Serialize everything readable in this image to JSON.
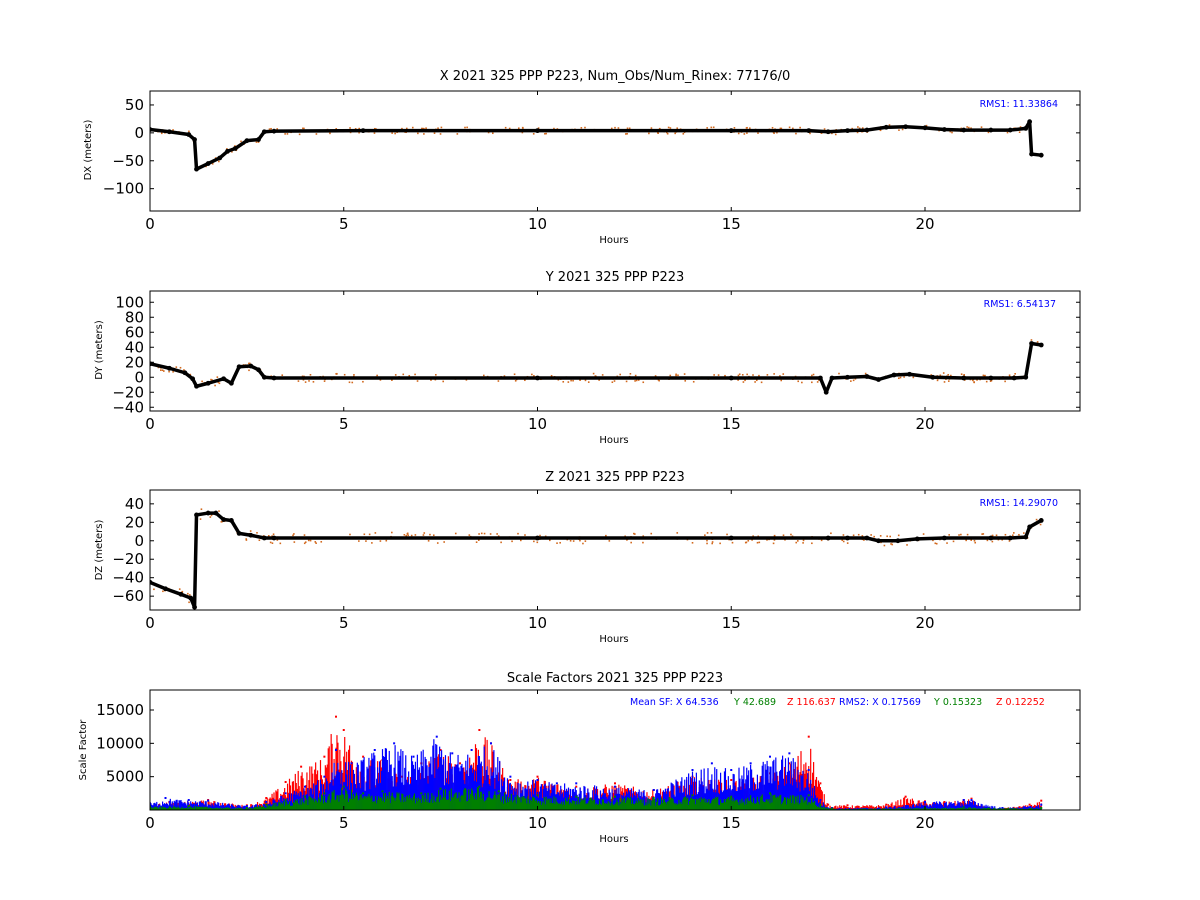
{
  "chart_data": [
    {
      "type": "scatter",
      "title": "X 2021 325 PPP  P223, Num_Obs/Num_Rinex: 77176/0",
      "xlabel": "Hours",
      "ylabel": "DX (meters)",
      "xlim": [
        0,
        24
      ],
      "ylim": [
        -140,
        75
      ],
      "xticks": [
        0,
        5,
        10,
        15,
        20
      ],
      "yticks": [
        50,
        0,
        -50,
        -100
      ],
      "annotation": "RMS1: 11.33864",
      "annotation_color": "#0000ff",
      "series": [
        {
          "color": "#000000",
          "values": [
            [
              0,
              6
            ],
            [
              0.5,
              2
            ],
            [
              1.0,
              -3
            ],
            [
              1.15,
              -12
            ],
            [
              1.2,
              -65
            ],
            [
              1.5,
              -55
            ],
            [
              1.8,
              -45
            ],
            [
              2.0,
              -33
            ],
            [
              2.2,
              -28
            ],
            [
              2.5,
              -14
            ],
            [
              2.8,
              -12
            ],
            [
              2.95,
              2
            ],
            [
              3.2,
              3
            ],
            [
              5.5,
              4
            ],
            [
              10,
              4
            ],
            [
              15,
              4
            ],
            [
              17.0,
              4
            ],
            [
              17.5,
              2
            ],
            [
              18.0,
              4
            ],
            [
              18.5,
              5
            ],
            [
              19.0,
              10
            ],
            [
              19.5,
              11
            ],
            [
              20.0,
              9
            ],
            [
              20.5,
              6
            ],
            [
              21.0,
              5
            ],
            [
              21.7,
              5
            ],
            [
              22.2,
              5
            ],
            [
              22.6,
              8
            ],
            [
              22.7,
              20
            ],
            [
              22.75,
              -38
            ],
            [
              23.0,
              -40
            ]
          ]
        }
      ],
      "outliers_color": "#d2691e"
    },
    {
      "type": "scatter",
      "title": "Y 2021 325 PPP  P223",
      "xlabel": "Hours",
      "ylabel": "DY (meters)",
      "xlim": [
        0,
        24
      ],
      "ylim": [
        -45,
        115
      ],
      "xticks": [
        0,
        5,
        10,
        15,
        20
      ],
      "yticks": [
        100,
        80,
        60,
        40,
        20,
        0,
        -20,
        -40
      ],
      "annotation": "RMS1:  6.54137",
      "annotation_color": "#0000ff",
      "series": [
        {
          "color": "#000000",
          "values": [
            [
              0,
              18
            ],
            [
              0.5,
              12
            ],
            [
              0.9,
              6
            ],
            [
              1.1,
              -2
            ],
            [
              1.2,
              -12
            ],
            [
              1.5,
              -8
            ],
            [
              1.9,
              -2
            ],
            [
              2.1,
              -8
            ],
            [
              2.3,
              14
            ],
            [
              2.6,
              15
            ],
            [
              2.8,
              10
            ],
            [
              2.95,
              0
            ],
            [
              3.2,
              -1
            ],
            [
              10,
              -1
            ],
            [
              15,
              -1
            ],
            [
              17.3,
              -1
            ],
            [
              17.45,
              -20
            ],
            [
              17.6,
              -1
            ],
            [
              18.0,
              0
            ],
            [
              18.5,
              1
            ],
            [
              18.8,
              -3
            ],
            [
              19.2,
              3
            ],
            [
              19.6,
              4
            ],
            [
              20.2,
              0
            ],
            [
              21.0,
              -1
            ],
            [
              21.7,
              -1
            ],
            [
              22.3,
              -1
            ],
            [
              22.6,
              0
            ],
            [
              22.75,
              45
            ],
            [
              23.0,
              43
            ]
          ]
        }
      ],
      "outliers_color": "#d2691e"
    },
    {
      "type": "scatter",
      "title": "Z 2021 325 PPP  P223",
      "xlabel": "Hours",
      "ylabel": "DZ (meters)",
      "xlim": [
        0,
        24
      ],
      "ylim": [
        -75,
        55
      ],
      "xticks": [
        0,
        5,
        10,
        15,
        20
      ],
      "yticks": [
        40,
        20,
        0,
        -20,
        -40,
        -60
      ],
      "annotation": "RMS1: 14.29070",
      "annotation_color": "#0000ff",
      "series": [
        {
          "color": "#000000",
          "values": [
            [
              0,
              -45
            ],
            [
              0.4,
              -52
            ],
            [
              0.8,
              -58
            ],
            [
              1.05,
              -62
            ],
            [
              1.15,
              -72
            ],
            [
              1.2,
              28
            ],
            [
              1.5,
              30
            ],
            [
              1.7,
              30
            ],
            [
              1.9,
              23
            ],
            [
              2.1,
              22
            ],
            [
              2.3,
              8
            ],
            [
              2.6,
              6
            ],
            [
              2.95,
              3
            ],
            [
              3.2,
              3
            ],
            [
              10,
              3
            ],
            [
              15,
              3
            ],
            [
              17.5,
              3
            ],
            [
              18.0,
              3
            ],
            [
              18.5,
              3
            ],
            [
              18.8,
              0
            ],
            [
              19.3,
              0
            ],
            [
              19.8,
              2
            ],
            [
              20.5,
              3
            ],
            [
              21.7,
              3
            ],
            [
              22.2,
              3
            ],
            [
              22.6,
              4
            ],
            [
              22.7,
              15
            ],
            [
              23.0,
              22
            ]
          ]
        }
      ],
      "outliers_color": "#d2691e"
    },
    {
      "type": "scatter",
      "title": "Scale Factors 2021 325 PPP  P223",
      "xlabel": "Hours",
      "ylabel": "Scale Factor",
      "xlim": [
        0,
        24
      ],
      "ylim": [
        0,
        18000
      ],
      "xticks": [
        0,
        5,
        10,
        15,
        20
      ],
      "yticks": [
        15000,
        10000,
        5000
      ],
      "annotations": [
        {
          "text": "Mean SF: X  64.536",
          "color": "#0000ff"
        },
        {
          "text": "Y  42.689",
          "color": "#008000"
        },
        {
          "text": "Z 116.637",
          "color": "#ff0000"
        },
        {
          "text": "RMS2: X  0.17569",
          "color": "#0000ff"
        },
        {
          "text": "Y  0.15323",
          "color": "#008000"
        },
        {
          "text": "Z  0.12252",
          "color": "#ff0000"
        }
      ],
      "series": [
        {
          "name": "Z",
          "color": "#ff0000",
          "values": [
            [
              0,
              800
            ],
            [
              0.5,
              1200
            ],
            [
              1.5,
              1500
            ],
            [
              2.5,
              700
            ],
            [
              3.0,
              1800
            ],
            [
              3.5,
              4200
            ],
            [
              3.9,
              6500
            ],
            [
              4.5,
              8000
            ],
            [
              4.8,
              14000
            ],
            [
              5.0,
              12000
            ],
            [
              5.5,
              8000
            ],
            [
              6.0,
              7500
            ],
            [
              6.5,
              5000
            ],
            [
              7.0,
              7000
            ],
            [
              7.5,
              9000
            ],
            [
              8.0,
              7000
            ],
            [
              8.5,
              12000
            ],
            [
              8.8,
              10000
            ],
            [
              9.3,
              4500
            ],
            [
              10,
              5000
            ],
            [
              11,
              3500
            ],
            [
              12,
              4000
            ],
            [
              13,
              3000
            ],
            [
              14,
              5000
            ],
            [
              15,
              4500
            ],
            [
              16,
              5500
            ],
            [
              16.5,
              7000
            ],
            [
              17.0,
              11000
            ],
            [
              17.3,
              4000
            ],
            [
              17.5,
              800
            ],
            [
              18.0,
              700
            ],
            [
              19.0,
              800
            ],
            [
              19.5,
              2000
            ],
            [
              20.0,
              1300
            ],
            [
              20.5,
              1200
            ],
            [
              21.0,
              1500
            ],
            [
              21.2,
              1700
            ],
            [
              21.5,
              400
            ],
            [
              22.0,
              300
            ],
            [
              22.7,
              800
            ],
            [
              23.0,
              1400
            ]
          ]
        },
        {
          "name": "X",
          "color": "#0000ff",
          "values": [
            [
              0,
              1000
            ],
            [
              0.4,
              1800
            ],
            [
              1.0,
              1500
            ],
            [
              1.5,
              1400
            ],
            [
              2.5,
              600
            ],
            [
              3.0,
              1200
            ],
            [
              3.5,
              2500
            ],
            [
              4.0,
              3500
            ],
            [
              4.5,
              5000
            ],
            [
              4.8,
              9000
            ],
            [
              5.2,
              7000
            ],
            [
              5.8,
              9000
            ],
            [
              6.3,
              10000
            ],
            [
              6.8,
              8000
            ],
            [
              7.4,
              11000
            ],
            [
              7.8,
              8500
            ],
            [
              8.3,
              9000
            ],
            [
              8.8,
              10000
            ],
            [
              9.3,
              5000
            ],
            [
              10,
              4500
            ],
            [
              10.5,
              4000
            ],
            [
              11,
              4000
            ],
            [
              12,
              3500
            ],
            [
              13,
              3000
            ],
            [
              14,
              6000
            ],
            [
              14.5,
              7000
            ],
            [
              15.0,
              6000
            ],
            [
              15.5,
              7000
            ],
            [
              16.0,
              8000
            ],
            [
              16.5,
              8500
            ],
            [
              17.0,
              6000
            ],
            [
              17.3,
              1500
            ],
            [
              17.6,
              300
            ],
            [
              19.0,
              400
            ],
            [
              20.0,
              1200
            ],
            [
              21.0,
              1500
            ],
            [
              21.2,
              1500
            ],
            [
              22.0,
              300
            ],
            [
              23.0,
              800
            ]
          ]
        },
        {
          "name": "Y",
          "color": "#008000",
          "values": [
            [
              0,
              500
            ],
            [
              1.0,
              600
            ],
            [
              2.5,
              300
            ],
            [
              3.0,
              800
            ],
            [
              3.5,
              1500
            ],
            [
              4.0,
              2000
            ],
            [
              4.5,
              2500
            ],
            [
              5.0,
              3500
            ],
            [
              5.5,
              2500
            ],
            [
              6.0,
              2800
            ],
            [
              7.0,
              2500
            ],
            [
              7.5,
              3200
            ],
            [
              8.5,
              3500
            ],
            [
              9.0,
              2800
            ],
            [
              10,
              2200
            ],
            [
              11,
              2000
            ],
            [
              12,
              2000
            ],
            [
              13,
              1800
            ],
            [
              14,
              2200
            ],
            [
              15,
              2000
            ],
            [
              16,
              2500
            ],
            [
              17.0,
              2200
            ],
            [
              17.3,
              800
            ],
            [
              17.6,
              200
            ],
            [
              20,
              300
            ],
            [
              21,
              400
            ],
            [
              23,
              300
            ]
          ]
        }
      ]
    }
  ]
}
